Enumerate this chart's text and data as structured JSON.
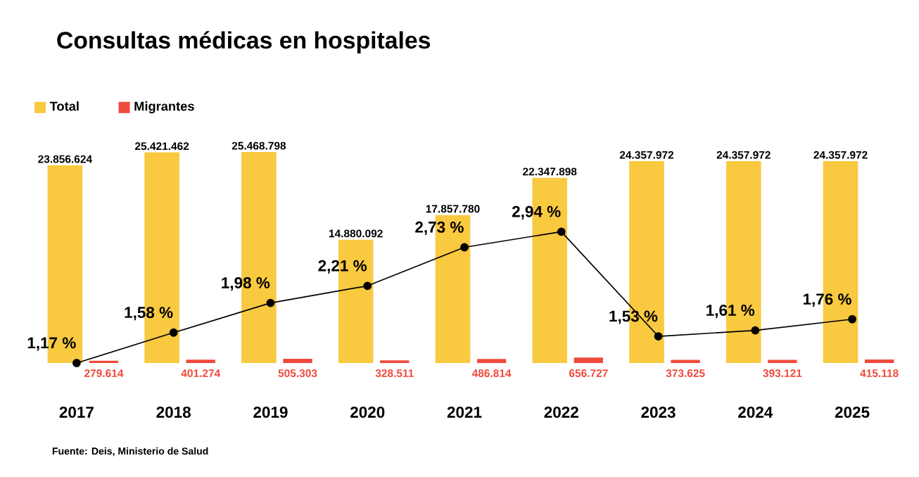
{
  "chart_data": {
    "type": "bar",
    "title": "Consultas médicas en hospitales",
    "categories": [
      "2017",
      "2018",
      "2019",
      "2020",
      "2021",
      "2022",
      "2023",
      "2024",
      "2025"
    ],
    "series": [
      {
        "name": "Total",
        "color": "#f9c940",
        "values": [
          23856624,
          25421462,
          25468798,
          14880092,
          17857780,
          22347898,
          24357972,
          24357972,
          24357972
        ],
        "value_labels": [
          "23.856.624",
          "25.421.462",
          "25.468.798",
          "14.880.092",
          "17.857.780",
          "22.347.898",
          "24.357.972",
          "24.357.972",
          "24.357.972"
        ]
      },
      {
        "name": "Migrantes",
        "color": "#ef4a3c",
        "values": [
          279614,
          401274,
          505303,
          328511,
          486814,
          656727,
          373625,
          393121,
          415118
        ],
        "value_labels": [
          "279.614",
          "401.274",
          "505.303",
          "328.511",
          "486.814",
          "656.727",
          "373.625",
          "393.121",
          "415.118"
        ]
      },
      {
        "type": "line",
        "axis": "y2",
        "color": "#000000",
        "values": [
          1.17,
          1.58,
          1.98,
          2.21,
          2.73,
          2.94,
          1.53,
          1.61,
          1.76
        ],
        "value_labels": [
          "1,17 %",
          "1,58 %",
          "1,98 %",
          "2,21 %",
          "2,73 %",
          "2,94 %",
          "1,53 %",
          "1,61 %",
          "1,76 %"
        ]
      }
    ],
    "marker": "circle",
    "legend": "top left",
    "annotations": [
      "Fuente: Deis, Ministerio de Salud"
    ]
  }
}
